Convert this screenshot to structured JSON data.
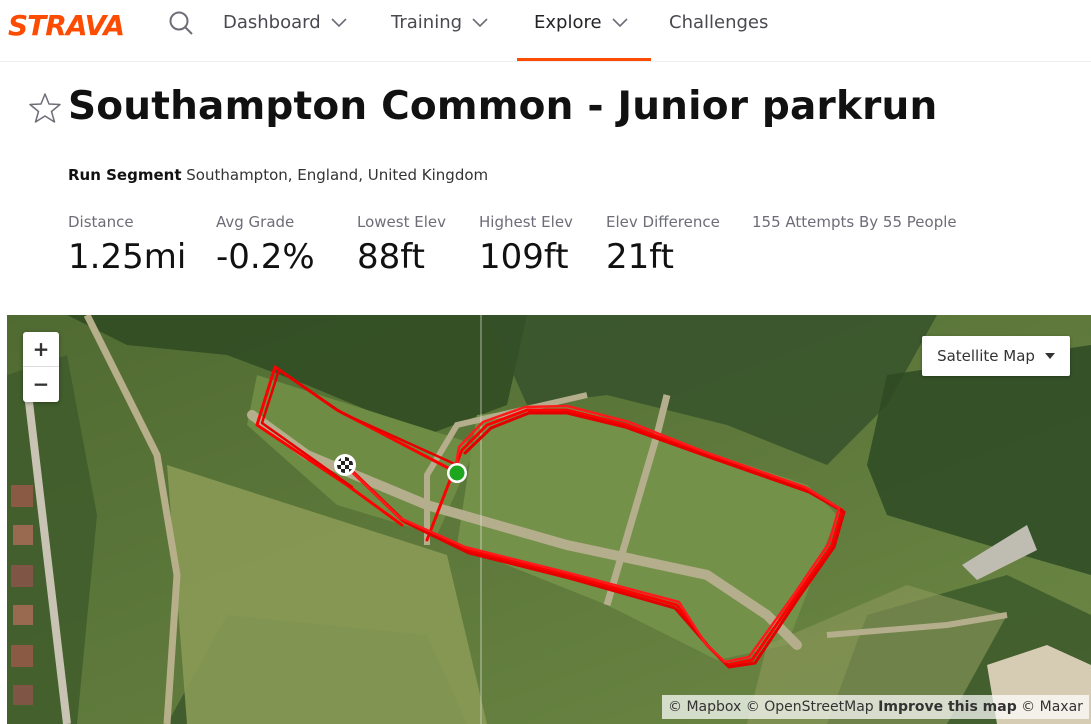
{
  "nav": {
    "logo": "STRAVA",
    "items": [
      {
        "label": "Dashboard"
      },
      {
        "label": "Training"
      },
      {
        "label": "Explore"
      },
      {
        "label": "Challenges"
      }
    ]
  },
  "segment": {
    "title": "Southampton Common - Junior parkrun",
    "type": "Run Segment",
    "location": "Southampton, England, United Kingdom",
    "stats": [
      {
        "label": "Distance",
        "value": "1.25mi"
      },
      {
        "label": "Avg Grade",
        "value": "-0.2%"
      },
      {
        "label": "Lowest Elev",
        "value": "88ft"
      },
      {
        "label": "Highest Elev",
        "value": "109ft"
      },
      {
        "label": "Elev Difference",
        "value": "21ft"
      }
    ],
    "attempts": "155 Attempts By 55 People"
  },
  "map": {
    "zoom_in": "+",
    "zoom_out": "−",
    "map_type": "Satellite Map",
    "attribution": {
      "mapbox": "© Mapbox",
      "osm": "© OpenStreetMap",
      "improve": "Improve this map",
      "maxar": "© Maxar"
    },
    "route_color": "#ff0000",
    "start_color": "#1fa61f"
  }
}
